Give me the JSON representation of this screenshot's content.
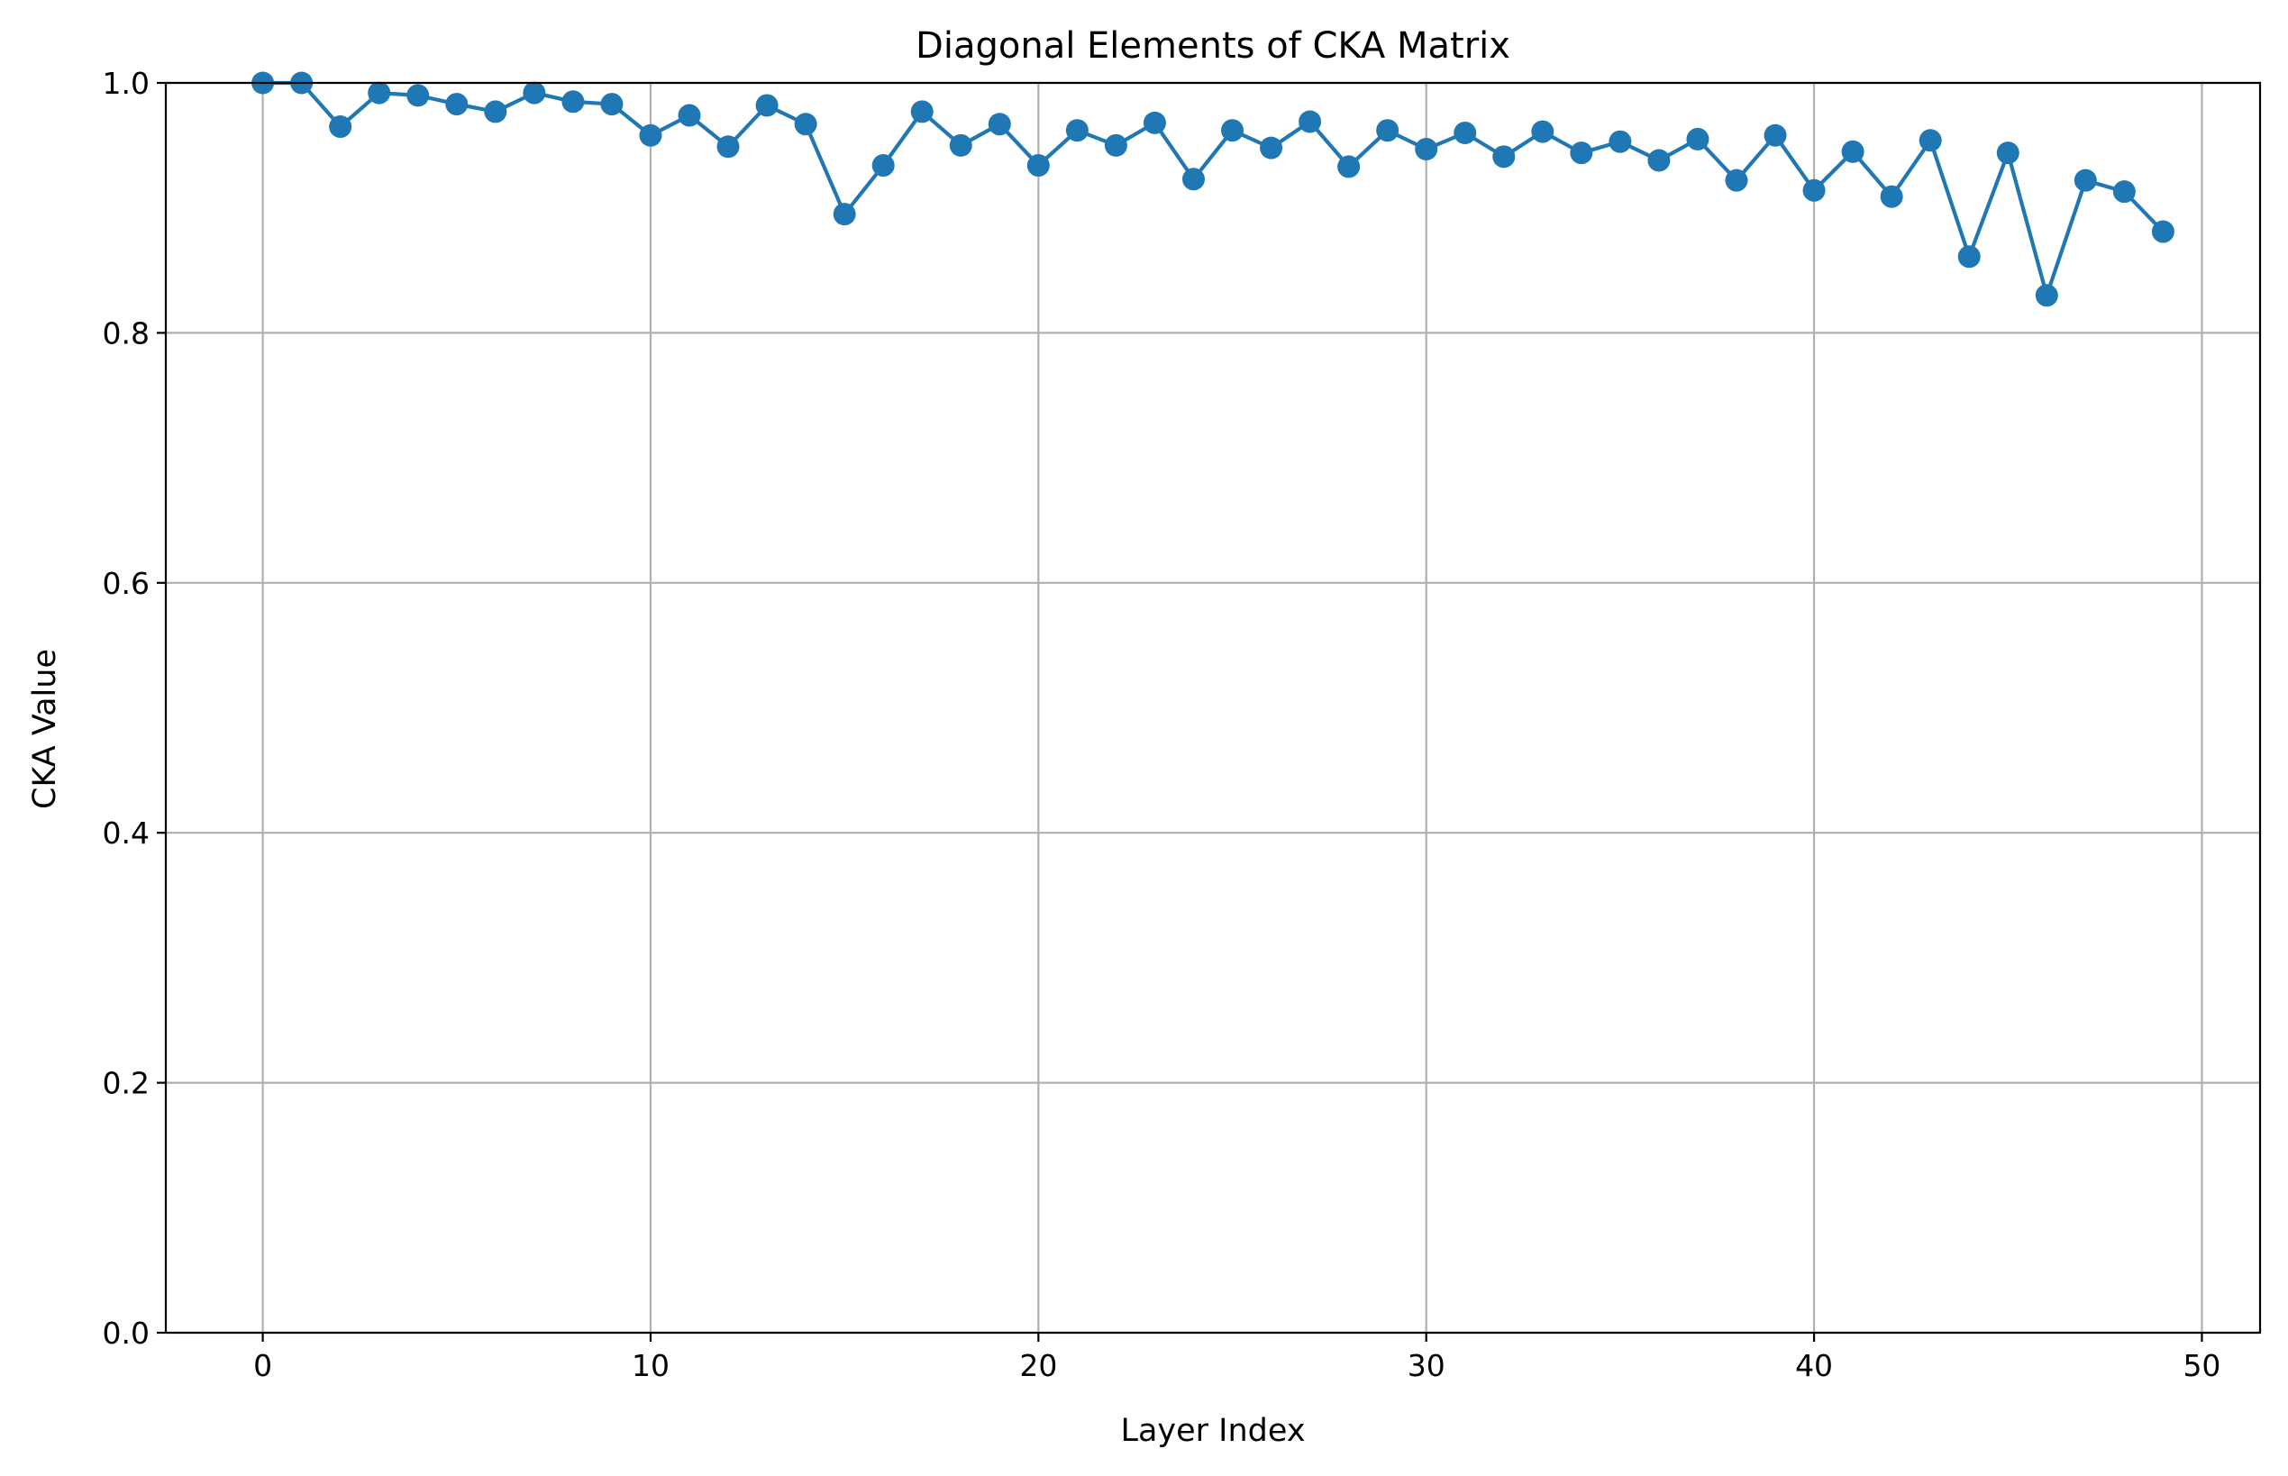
{
  "chart_data": {
    "type": "line",
    "title": "Diagonal Elements of CKA Matrix",
    "xlabel": "Layer Index",
    "ylabel": "CKA Value",
    "xlim": [
      -2.5,
      51.5
    ],
    "ylim": [
      0.0,
      1.0
    ],
    "x_ticks": [
      0,
      10,
      20,
      30,
      40,
      50
    ],
    "x_tick_labels": [
      "0",
      "10",
      "20",
      "30",
      "40",
      "50"
    ],
    "y_ticks": [
      0.0,
      0.2,
      0.4,
      0.6,
      0.8,
      1.0
    ],
    "y_tick_labels": [
      "0.0",
      "0.2",
      "0.4",
      "0.6",
      "0.8",
      "1.0"
    ],
    "grid": true,
    "line_color": "#1f77b4",
    "marker": "circle",
    "x": [
      0,
      1,
      2,
      3,
      4,
      5,
      6,
      7,
      8,
      9,
      10,
      11,
      12,
      13,
      14,
      15,
      16,
      17,
      18,
      19,
      20,
      21,
      22,
      23,
      24,
      25,
      26,
      27,
      28,
      29,
      30,
      31,
      32,
      33,
      34,
      35,
      36,
      37,
      38,
      39,
      40,
      41,
      42,
      43,
      44,
      45,
      46,
      47,
      48,
      49
    ],
    "y": [
      1.0,
      1.0,
      0.965,
      0.992,
      0.99,
      0.983,
      0.977,
      0.992,
      0.985,
      0.983,
      0.958,
      0.974,
      0.949,
      0.982,
      0.967,
      0.895,
      0.934,
      0.977,
      0.95,
      0.967,
      0.934,
      0.962,
      0.95,
      0.968,
      0.923,
      0.962,
      0.948,
      0.969,
      0.933,
      0.962,
      0.947,
      0.96,
      0.941,
      0.961,
      0.944,
      0.953,
      0.938,
      0.955,
      0.922,
      0.958,
      0.914,
      0.945,
      0.909,
      0.954,
      0.861,
      0.944,
      0.83,
      0.922,
      0.913,
      0.881
    ]
  }
}
